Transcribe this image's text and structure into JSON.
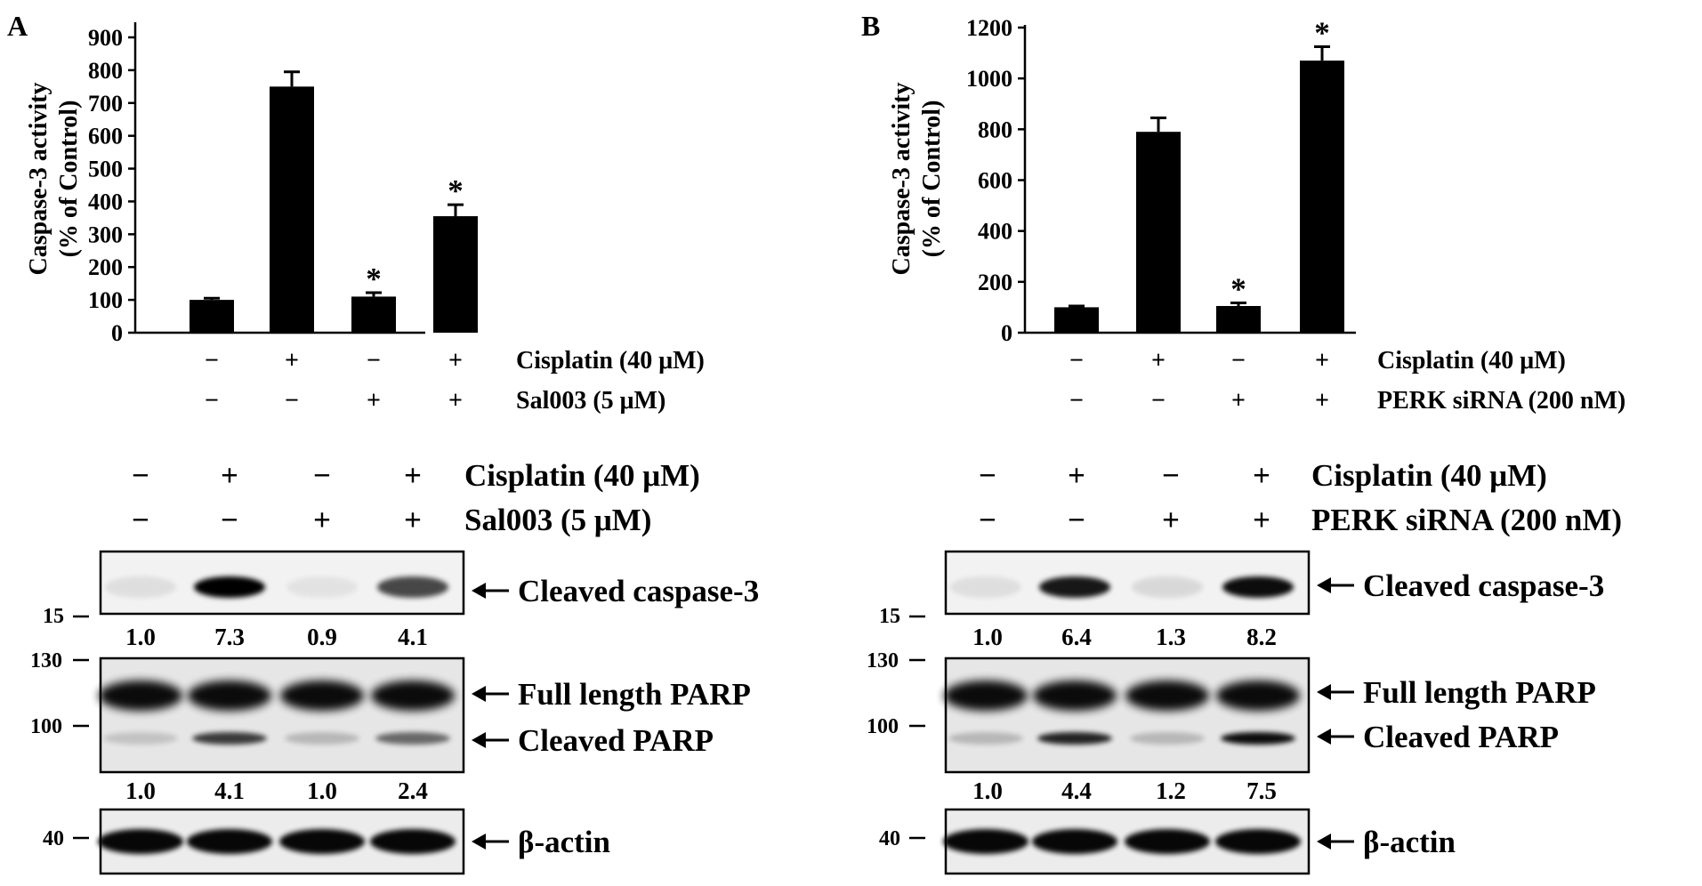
{
  "chart_data": [
    {
      "panel": "A",
      "type": "bar",
      "ylabel": [
        "Caspase-3 activity",
        "(% of Control)"
      ],
      "ylim": [
        0,
        900
      ],
      "yticks": [
        0,
        100,
        200,
        300,
        400,
        500,
        600,
        700,
        800,
        900
      ],
      "values": [
        100,
        750,
        110,
        355
      ],
      "errors": [
        5,
        45,
        12,
        35
      ],
      "significance": [
        "",
        "",
        "*",
        "*"
      ],
      "treatments": [
        {
          "name": "Cisplatin (40 μM)",
          "signs": [
            "−",
            "+",
            "−",
            "+"
          ]
        },
        {
          "name": "Sal003 (5 μM)",
          "signs": [
            "−",
            "−",
            "+",
            "+"
          ]
        }
      ]
    },
    {
      "panel": "B",
      "type": "bar",
      "ylabel": [
        "Caspase-3 activity",
        "(% of Control)"
      ],
      "ylim": [
        0,
        1200
      ],
      "yticks": [
        0,
        200,
        400,
        600,
        800,
        1000,
        1200
      ],
      "values": [
        100,
        790,
        105,
        1070
      ],
      "errors": [
        5,
        55,
        12,
        55
      ],
      "significance": [
        "",
        "",
        "*",
        "*"
      ],
      "treatments": [
        {
          "name": "Cisplatin (40 μM)",
          "signs": [
            "−",
            "+",
            "−",
            "+"
          ]
        },
        {
          "name": "PERK siRNA (200 nM)",
          "signs": [
            "−",
            "−",
            "+",
            "+"
          ]
        }
      ]
    }
  ],
  "blots": [
    {
      "panel": "A",
      "treatments": [
        {
          "name": "Cisplatin (40 μM)",
          "signs": [
            "−",
            "+",
            "−",
            "+"
          ]
        },
        {
          "name": "Sal003 (5 μM)",
          "signs": [
            "−",
            "−",
            "+",
            "+"
          ]
        }
      ],
      "caspase_mw": "15",
      "caspase_label": "Cleaved caspase-3",
      "caspase_ratios": [
        "1.0",
        "7.3",
        "0.9",
        "4.1"
      ],
      "parp_mw": [
        "130",
        "100"
      ],
      "parp_labels": [
        "Full length PARP",
        "Cleaved PARP"
      ],
      "parp_ratios": [
        "1.0",
        "4.1",
        "1.0",
        "2.4"
      ],
      "actin_mw": "40",
      "actin_label": "β-actin"
    },
    {
      "panel": "B",
      "treatments": [
        {
          "name": "Cisplatin (40 μM)",
          "signs": [
            "−",
            "+",
            "−",
            "+"
          ]
        },
        {
          "name": "PERK siRNA (200 nM)",
          "signs": [
            "−",
            "−",
            "+",
            "+"
          ]
        }
      ],
      "caspase_mw": "15",
      "caspase_label": "Cleaved caspase-3",
      "caspase_ratios": [
        "1.0",
        "6.4",
        "1.3",
        "8.2"
      ],
      "parp_mw": [
        "130",
        "100"
      ],
      "parp_labels": [
        "Full length PARP",
        "Cleaved PARP"
      ],
      "parp_ratios": [
        "1.0",
        "4.4",
        "1.2",
        "7.5"
      ],
      "actin_mw": "40",
      "actin_label": "β-actin"
    }
  ],
  "caspase_intensity": [
    [
      0.08,
      1.0,
      0.06,
      0.7
    ],
    [
      0.08,
      0.9,
      0.1,
      0.95
    ]
  ],
  "parp_cleaved_intensity": [
    [
      0.15,
      0.75,
      0.2,
      0.55
    ],
    [
      0.2,
      0.85,
      0.2,
      0.95
    ]
  ]
}
